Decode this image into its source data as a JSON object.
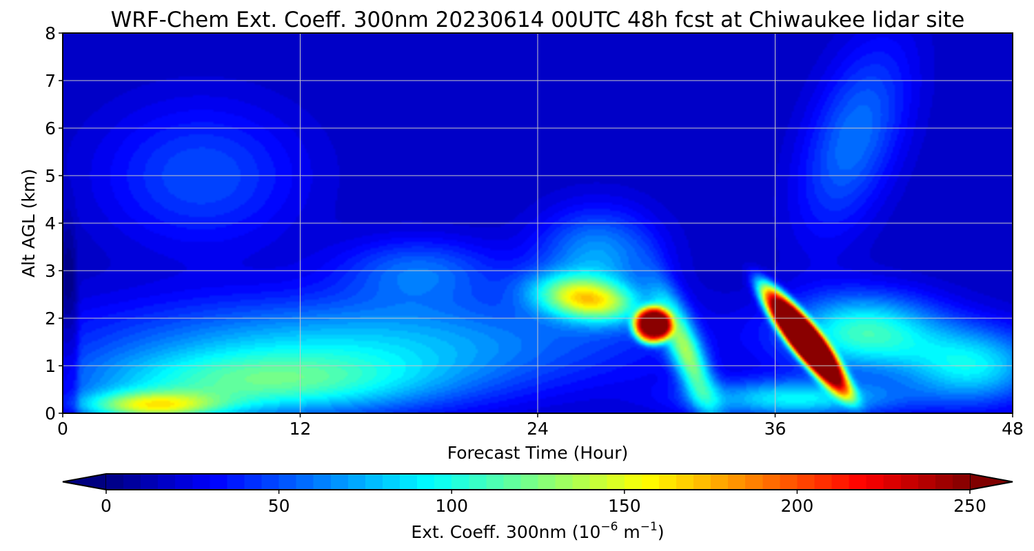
{
  "chart_data": {
    "type": "heatmap",
    "title": "WRF-Chem Ext. Coeff. 300nm  20230614 00UTC 48h fcst at Chiwaukee lidar site",
    "xlabel": "Forecast Time (Hour)",
    "ylabel": "Alt AGL (km)",
    "xlim": [
      0,
      48
    ],
    "ylim": [
      0,
      8
    ],
    "xticks": [
      "0",
      "12",
      "24",
      "36",
      "48"
    ],
    "yticks": [
      "0",
      "1",
      "2",
      "3",
      "4",
      "5",
      "6",
      "7",
      "8"
    ],
    "grid": true,
    "colormap": "jet",
    "colorbar": {
      "label_main": "Ext. Coeff. 300nm  (10",
      "label_exp1": "−6",
      "label_mid": " m",
      "label_exp2": "−1",
      "label_end": ")",
      "range": [
        0,
        250
      ],
      "ticks": [
        "0",
        "50",
        "100",
        "150",
        "200",
        "250"
      ],
      "extend": "both",
      "placement": "bottom"
    },
    "background_value": 15,
    "features": [
      {
        "hour": 37.5,
        "alt_km": 1.55,
        "value": 300,
        "sx": 2.4,
        "sy": 0.45,
        "rot": -0.45,
        "p": 4
      },
      {
        "hour": 29.8,
        "alt_km": 1.85,
        "value": 215,
        "sx": 0.95,
        "sy": 0.38,
        "rot": 0,
        "p": 4
      },
      {
        "hour": 26.5,
        "alt_km": 2.4,
        "value": 120,
        "sx": 2.6,
        "sy": 0.45,
        "rot": -0.05,
        "p": 2
      },
      {
        "hour": 31.5,
        "alt_km": 1.3,
        "value": 105,
        "sx": 1.8,
        "sy": 0.6,
        "rot": -0.7,
        "p": 2
      },
      {
        "hour": 40.5,
        "alt_km": 1.7,
        "value": 90,
        "sx": 3.8,
        "sy": 0.8,
        "rot": 0,
        "p": 2
      },
      {
        "hour": 10,
        "alt_km": 0.6,
        "value": 80,
        "sx": 9,
        "sy": 0.7,
        "rot": 0,
        "p": 2
      },
      {
        "hour": 4.5,
        "alt_km": 0.15,
        "value": 105,
        "sx": 3.5,
        "sy": 0.3,
        "rot": 0,
        "p": 2
      },
      {
        "hour": 15,
        "alt_km": 1.5,
        "value": 60,
        "sx": 14,
        "sy": 1.0,
        "rot": 0,
        "p": 2
      },
      {
        "hour": 46,
        "alt_km": 1.0,
        "value": 75,
        "sx": 3.5,
        "sy": 0.8,
        "rot": 0,
        "p": 2
      },
      {
        "hour": 37,
        "alt_km": 0.3,
        "value": 75,
        "sx": 5,
        "sy": 0.4,
        "rot": 0,
        "p": 2
      },
      {
        "hour": 27,
        "alt_km": 3.3,
        "value": 55,
        "sx": 3,
        "sy": 1.0,
        "rot": 0,
        "p": 2
      },
      {
        "hour": 40,
        "alt_km": 5.8,
        "value": 45,
        "sx": 3,
        "sy": 1.6,
        "rot": 0.5,
        "p": 2
      },
      {
        "hour": 7,
        "alt_km": 5.0,
        "value": 35,
        "sx": 5,
        "sy": 1.5,
        "rot": 0,
        "p": 2
      },
      {
        "hour": 18,
        "alt_km": 3.0,
        "value": 40,
        "sx": 4,
        "sy": 0.7,
        "rot": 0,
        "p": 2
      },
      {
        "hour": 0.3,
        "alt_km": 1.0,
        "value": -20,
        "sx": 0.5,
        "sy": 3.0,
        "rot": 0,
        "p": 4
      }
    ]
  }
}
